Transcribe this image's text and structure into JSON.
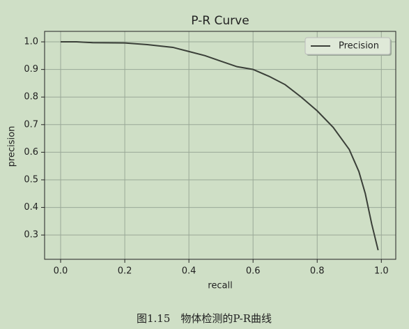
{
  "chart_data": {
    "type": "line",
    "title": "P-R Curve",
    "x_label": "recall",
    "y_label": "precision",
    "caption": "图1.15　物体检测的P-R曲线",
    "x": [
      0,
      0.05,
      0.1,
      0.2,
      0.27,
      0.35,
      0.4,
      0.45,
      0.5,
      0.55,
      0.6,
      0.65,
      0.7,
      0.75,
      0.8,
      0.85,
      0.9,
      0.93,
      0.95,
      0.97,
      0.99
    ],
    "series": [
      {
        "name": "Precision",
        "color": "#3a3f38",
        "values": [
          1.0,
          1.0,
          0.997,
          0.996,
          0.99,
          0.98,
          0.965,
          0.95,
          0.93,
          0.91,
          0.9,
          0.875,
          0.845,
          0.8,
          0.75,
          0.69,
          0.61,
          0.53,
          0.45,
          0.34,
          0.245
        ]
      }
    ],
    "xlim": [
      -0.05,
      1.045
    ],
    "ylim": [
      0.212,
      1.038
    ],
    "xticks": [
      {
        "value": 0,
        "label": "0.0"
      },
      0.2,
      0.4,
      0.6,
      0.8,
      {
        "value": 1,
        "label": "1.0"
      }
    ],
    "yticks": [
      0.3,
      0.4,
      0.5,
      0.6,
      0.7,
      0.8,
      0.9,
      {
        "value": 1,
        "label": "1.0"
      }
    ],
    "grid": true,
    "legend": "upper-right"
  }
}
